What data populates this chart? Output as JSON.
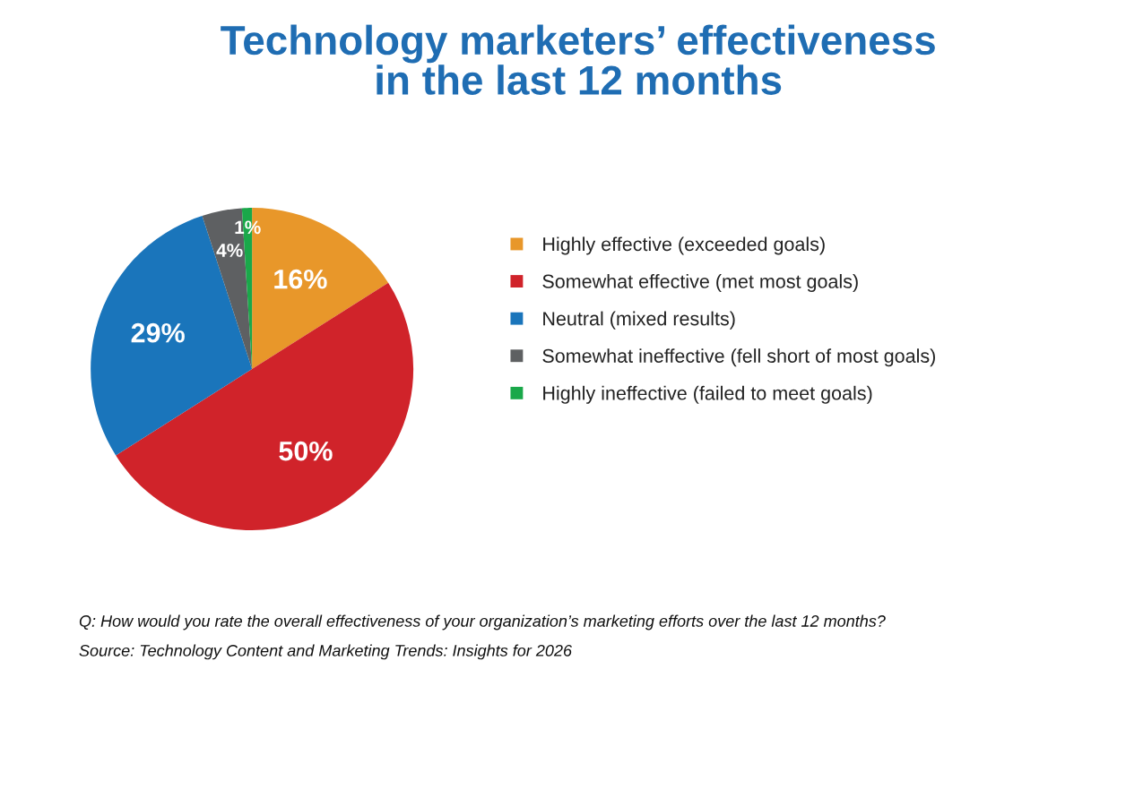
{
  "chart_data": {
    "type": "pie",
    "title": "Technology marketers’ effectiveness\nin the last 12 months",
    "categories": [
      "Highly effective (exceeded goals)",
      "Somewhat effective (met most goals)",
      "Neutral (mixed results)",
      "Somewhat ineffective (fell short of most goals)",
      "Highly ineffective (failed to meet goals)"
    ],
    "values": [
      16,
      50,
      29,
      4,
      1
    ],
    "colors": [
      "#e8972a",
      "#d0232a",
      "#1a75bb",
      "#5e6062",
      "#1aa84a"
    ],
    "value_labels": [
      "16%",
      "50%",
      "29%",
      "4%",
      "1%"
    ],
    "legend": "right",
    "annotations": [
      "Q: How would you rate the overall effectiveness of your organization’s marketing efforts over the last 12 months?",
      "Source: Technology Content and Marketing Trends: Insights for 2026"
    ]
  }
}
